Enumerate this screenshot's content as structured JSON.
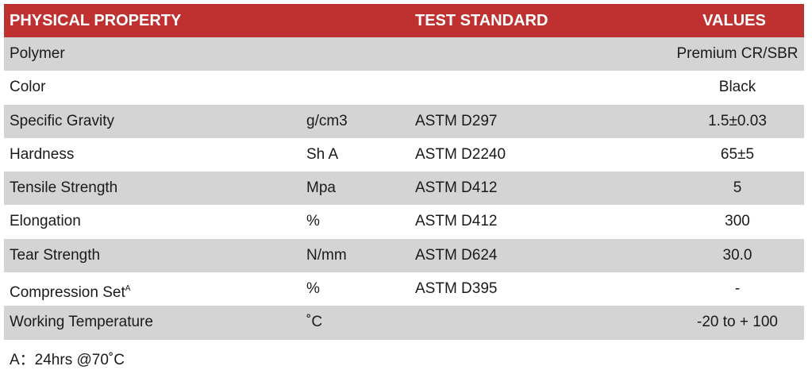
{
  "header": {
    "property": "PHYSICAL PROPERTY",
    "standard": "TEST STANDARD",
    "values": "VALUES"
  },
  "colors": {
    "header_bg": "#bf3131",
    "stripe": "#d4d4d4"
  },
  "rows": [
    {
      "property": "Polymer",
      "unit": "",
      "standard": "",
      "value": "Premium CR/SBR"
    },
    {
      "property": "Color",
      "unit": "",
      "standard": "",
      "value": "Black"
    },
    {
      "property": "Specific Gravity",
      "unit": "g/cm3",
      "standard": "ASTM D297",
      "value": "1.5±0.03"
    },
    {
      "property": "Hardness",
      "unit": "Sh A",
      "standard": "ASTM D2240",
      "value": "65±5"
    },
    {
      "property": "Tensile Strength",
      "unit": "Mpa",
      "standard": "ASTM D412",
      "value": "5"
    },
    {
      "property": "Elongation",
      "unit": "%",
      "standard": "ASTM D412",
      "value": "300"
    },
    {
      "property": "Tear Strength",
      "unit": "N/mm",
      "standard": "ASTM D624",
      "value": "30.0"
    },
    {
      "property": "Compression Set",
      "sup": "A",
      "unit": "%",
      "standard": "ASTM D395",
      "value": "-"
    },
    {
      "property": "Working Temperature",
      "unit": "˚C",
      "standard": "",
      "value": "-20 to + 100"
    }
  ],
  "footnote": "A：24hrs @70˚C"
}
